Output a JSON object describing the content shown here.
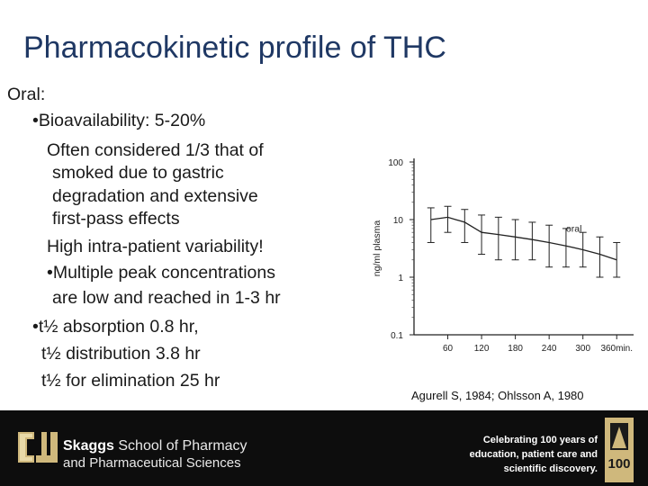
{
  "title": "Pharmacokinetic profile of THC",
  "heading": "Oral:",
  "lines": [
    "•Bioavailability: 5-20%",
    "Often considered 1/3 that of",
    "smoked due to gastric",
    "degradation and extensive",
    "first-pass effects",
    "High intra-patient variability!",
    "•Multiple peak concentrations",
    "are low and reached in 1-3 hr",
    "•t½ absorption 0.8 hr,",
    "t½ distribution 3.8 hr",
    "t½ for elimination 25 hr"
  ],
  "chart_data": {
    "type": "line",
    "ylabel": "ng/ml plasma",
    "yscale": "log",
    "ylim": [
      0.1,
      100
    ],
    "yticks": [
      "100",
      "10",
      "1",
      "0.1"
    ],
    "xticks": [
      "60",
      "120",
      "180",
      "240",
      "300",
      "360min."
    ],
    "series": [
      {
        "name": "oral",
        "x": [
          30,
          60,
          90,
          120,
          150,
          180,
          210,
          240,
          270,
          300,
          330,
          360
        ],
        "y": [
          10,
          11,
          9,
          6,
          5.5,
          5,
          4.5,
          4,
          3.5,
          3,
          2.5,
          2
        ],
        "err_low": [
          4,
          6,
          4,
          2.5,
          2,
          2,
          2,
          1.5,
          1.5,
          1.5,
          1,
          1
        ],
        "err_high": [
          16,
          17,
          15,
          12,
          11,
          10,
          9,
          8,
          7,
          6,
          5,
          4
        ]
      }
    ],
    "grid": false
  },
  "citation": "Agurell S, 1984; Ohlsson A, 1980",
  "footer": {
    "school_bold": "Skaggs",
    "school_rest": " School of Pharmacy",
    "school_line2": "and Pharmaceutical Sciences",
    "celebrate": [
      "Celebrating 100 years of",
      "education, patient care and",
      "scientific discovery."
    ],
    "badge_number": "100",
    "colors": {
      "background": "#0d0d0d",
      "gold": "#cfb87c"
    }
  }
}
